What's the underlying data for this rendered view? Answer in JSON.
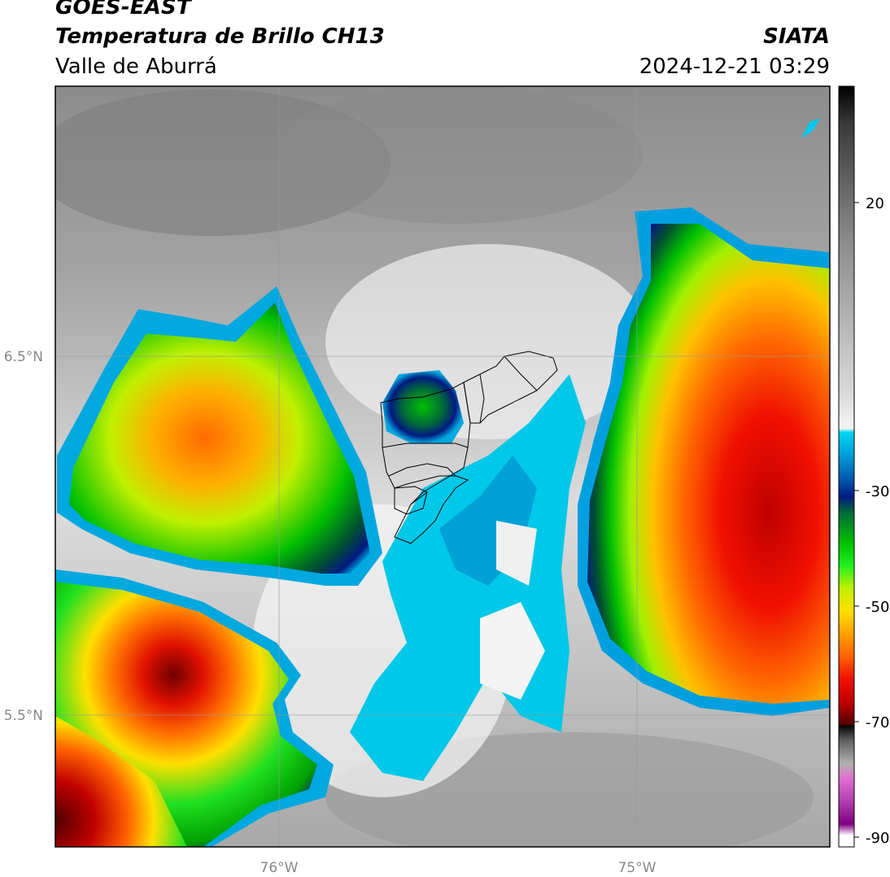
{
  "header": {
    "satellite": "GOES-EAST",
    "product": "Temperatura de Brillo CH13",
    "region": "Valle de Aburrá",
    "agency": "SIATA",
    "datetime": "2024-12-21 03:29"
  },
  "axes": {
    "lat_labels": [
      "6.5°N",
      "5.5°N"
    ],
    "lon_labels": [
      "76°W",
      "75°W"
    ]
  },
  "colorbar": {
    "tick_labels": [
      "20",
      "-30",
      "-50",
      "-70",
      "-90"
    ],
    "colors": [
      "#000000",
      "#3a3a3a",
      "#8a8a8a",
      "#d8d8d8",
      "#f4f4f4",
      "#00d6f0",
      "#00a8e0",
      "#0050a8",
      "#001a80",
      "#006a3a",
      "#00c000",
      "#20f020",
      "#c0f000",
      "#ffe000",
      "#ffa000",
      "#ff6000",
      "#f01000",
      "#c00000",
      "#500000",
      "#000000",
      "#606060",
      "#b0b0b0",
      "#e070d0",
      "#b040b0",
      "#800080",
      "#ffffff"
    ]
  }
}
